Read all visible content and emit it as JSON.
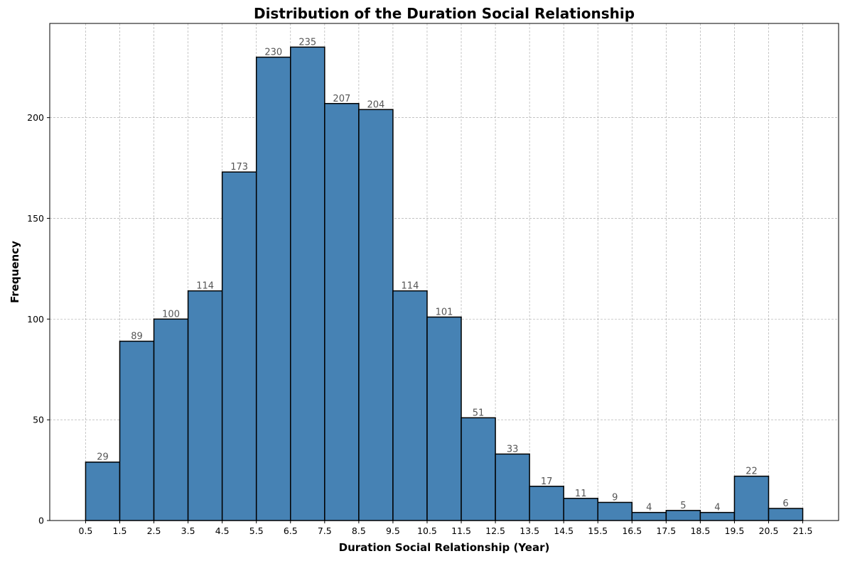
{
  "chart_data": {
    "type": "bar",
    "title": "Distribution of the Duration Social Relationship",
    "xlabel": "Duration Social Relationship (Year)",
    "ylabel": "Frequency",
    "bin_edges": [
      0.5,
      1.5,
      2.5,
      3.5,
      4.5,
      5.5,
      6.5,
      7.5,
      8.5,
      9.5,
      10.5,
      11.5,
      12.5,
      13.5,
      14.5,
      15.5,
      16.5,
      17.5,
      18.5,
      19.5,
      20.5,
      21.5
    ],
    "x_tick_labels": [
      "0.5",
      "1.5",
      "2.5",
      "3.5",
      "4.5",
      "5.5",
      "6.5",
      "7.5",
      "8.5",
      "9.5",
      "10.5",
      "11.5",
      "12.5",
      "13.5",
      "14.5",
      "15.5",
      "16.5",
      "17.5",
      "18.5",
      "19.5",
      "20.5",
      "21.5"
    ],
    "values": [
      29,
      89,
      100,
      114,
      173,
      230,
      235,
      207,
      204,
      114,
      101,
      51,
      33,
      17,
      11,
      9,
      4,
      5,
      4,
      22,
      6
    ],
    "y_ticks": [
      0,
      50,
      100,
      150,
      200
    ],
    "y_tick_labels": [
      "0",
      "50",
      "100",
      "150",
      "200"
    ],
    "xlim": [
      -0.55,
      22.55
    ],
    "ylim": [
      0,
      246.75
    ],
    "grid": true,
    "bar_color": "#4682b4",
    "bar_edge_color": "#000000",
    "label_color": "#555555"
  }
}
